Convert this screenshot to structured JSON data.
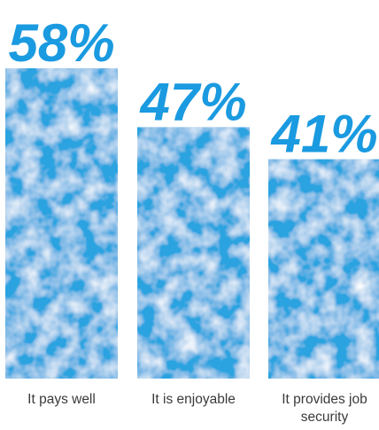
{
  "chart_data": {
    "type": "bar",
    "categories": [
      "It pays well",
      "It is enjoyable",
      "It provides job security"
    ],
    "category_lines": [
      [
        "It pays well"
      ],
      [
        "It is enjoyable"
      ],
      [
        "It provides job",
        "security"
      ]
    ],
    "values": [
      58,
      47,
      41
    ],
    "value_labels": [
      "58%",
      "47%",
      "41%"
    ],
    "unit": "%",
    "ylim": [
      0,
      58
    ],
    "grid": false,
    "legend": "none",
    "title": "",
    "xlabel": "",
    "ylabel": ""
  },
  "colors": {
    "bar": "#2aa3e0",
    "bar_texture_light": "#6cc3ef",
    "bar_texture_dark": "#1a8dc8",
    "value_text": "#1a9ae0",
    "category_text": "#3a3a3a",
    "background": "#ffffff"
  }
}
